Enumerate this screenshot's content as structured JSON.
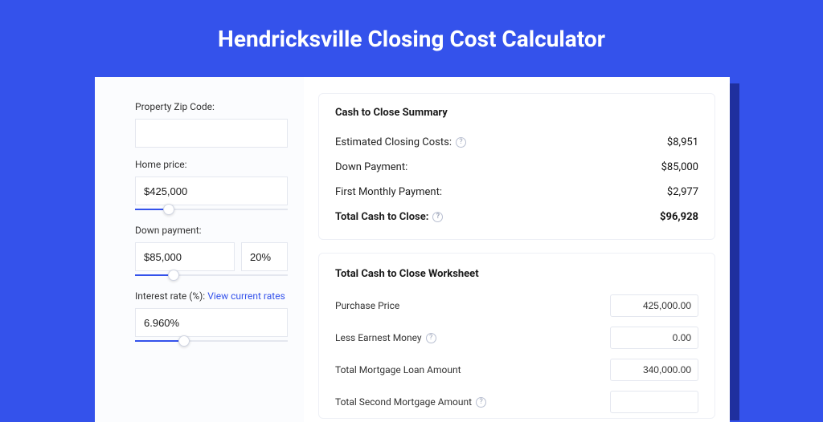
{
  "colors": {
    "page_bg": "#3452eb",
    "card_bg": "#ffffff",
    "left_panel_bg": "#fbfcfe",
    "shadow": "#1f2f9e",
    "border": "#e4e7ef",
    "link": "#3452eb",
    "title_text": "#ffffff"
  },
  "title": "Hendricksville Closing Cost Calculator",
  "inputs": {
    "zip": {
      "label": "Property Zip Code:",
      "value": ""
    },
    "home_price": {
      "label": "Home price:",
      "value": "$425,000",
      "slider_pct": 22
    },
    "down_payment": {
      "label": "Down payment:",
      "value": "$85,000",
      "pct_value": "20%",
      "slider_pct": 25
    },
    "interest_rate": {
      "label": "Interest rate (%): ",
      "link_text": "View current rates",
      "value": "6.960%",
      "slider_pct": 32
    }
  },
  "summary": {
    "heading": "Cash to Close Summary",
    "rows": [
      {
        "label": "Estimated Closing Costs:",
        "help": true,
        "value": "$8,951",
        "bold": false
      },
      {
        "label": "Down Payment:",
        "help": false,
        "value": "$85,000",
        "bold": false
      },
      {
        "label": "First Monthly Payment:",
        "help": false,
        "value": "$2,977",
        "bold": false
      },
      {
        "label": "Total Cash to Close:",
        "help": true,
        "value": "$96,928",
        "bold": true
      }
    ]
  },
  "worksheet": {
    "heading": "Total Cash to Close Worksheet",
    "rows": [
      {
        "label": "Purchase Price",
        "help": false,
        "value": "425,000.00"
      },
      {
        "label": "Less Earnest Money",
        "help": true,
        "value": "0.00"
      },
      {
        "label": "Total Mortgage Loan Amount",
        "help": false,
        "value": "340,000.00"
      },
      {
        "label": "Total Second Mortgage Amount",
        "help": true,
        "value": ""
      }
    ]
  }
}
